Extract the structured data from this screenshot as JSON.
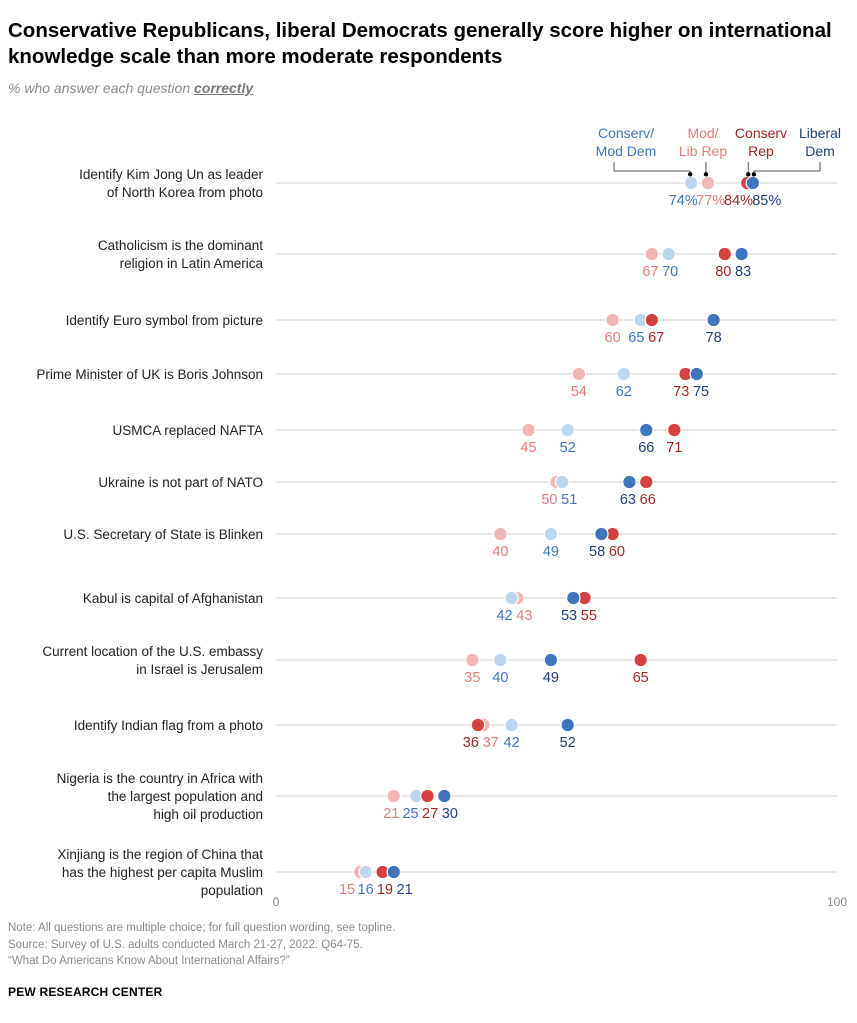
{
  "header": {
    "title": "Conservative Republicans, liberal Democrats generally score higher on international knowledge scale than more moderate respondents",
    "subtitle_prefix": "% who answer each question",
    "subtitle_emphasis": "correctly"
  },
  "colors": {
    "mod_lib_rep": "#f2b6b6",
    "conserv_rep": "#d83f3f",
    "conserv_mod_dem": "#bcd6f0",
    "liberal_dem": "#3f74c0",
    "mod_lib_rep_text": "#e77a7a",
    "conserv_rep_text": "#a32424",
    "conserv_mod_dem_text": "#3f74c0",
    "liberal_dem_text": "#1f3f78",
    "gridline": "#cfcfcf"
  },
  "chart_data": {
    "type": "dot",
    "title": "Conservative Republicans, liberal Democrats generally score higher on international knowledge scale than more moderate respondents",
    "ylabel": "% who answer each question correctly",
    "xlim": [
      0,
      100
    ],
    "axis_ticks": [
      "0",
      "100"
    ],
    "legend": [
      {
        "key": "conserv_mod_dem",
        "label_line1": "Conserv/",
        "label_line2": "Mod Dem"
      },
      {
        "key": "mod_lib_rep",
        "label_line1": "Mod/",
        "label_line2": "Lib Rep"
      },
      {
        "key": "conserv_rep",
        "label_line1": "Conserv",
        "label_line2": "Rep"
      },
      {
        "key": "liberal_dem",
        "label_line1": "Liberal",
        "label_line2": "Dem"
      }
    ],
    "categories": [
      "Identify Kim Jong Un as leader of North Korea from photo",
      "Catholicism is the dominant religion in Latin America",
      "Identify Euro symbol from picture",
      "Prime Minister of UK is Boris Johnson",
      "USMCA replaced NAFTA",
      "Ukraine is not part of NATO",
      "U.S. Secretary of State is Blinken",
      "Kabul is capital of Afghanistan",
      "Current location of the U.S. embassy in Israel is Jerusalem",
      "Identify Indian flag from a photo",
      "Nigeria is the country in Africa with the largest population and high oil production",
      "Xinjiang is the region of China that has the highest per capita Muslim population"
    ],
    "series": [
      {
        "key": "mod_lib_rep",
        "name": "Mod/Lib Rep",
        "values": [
          77,
          67,
          60,
          54,
          45,
          50,
          40,
          43,
          35,
          37,
          21,
          15
        ]
      },
      {
        "key": "conserv_mod_dem",
        "name": "Conserv/Mod Dem",
        "values": [
          74,
          70,
          65,
          62,
          52,
          51,
          49,
          42,
          40,
          42,
          25,
          16
        ]
      },
      {
        "key": "conserv_rep",
        "name": "Conserv Rep",
        "values": [
          84,
          80,
          67,
          73,
          71,
          66,
          60,
          55,
          65,
          36,
          27,
          19
        ]
      },
      {
        "key": "liberal_dem",
        "name": "Liberal Dem",
        "values": [
          85,
          83,
          78,
          75,
          66,
          63,
          58,
          53,
          49,
          52,
          30,
          21
        ]
      }
    ],
    "rows": [
      {
        "label_lines": [
          "Identify Kim Jong Un as leader",
          "of North Korea from photo"
        ],
        "data_labels": [
          {
            "key": "conserv_mod_dem",
            "text": "74%"
          },
          {
            "key": "mod_lib_rep",
            "text": "77%"
          },
          {
            "key": "conserv_rep",
            "text": "84%"
          },
          {
            "key": "liberal_dem",
            "text": "85%"
          }
        ]
      },
      {
        "label_lines": [
          "Catholicism is the dominant",
          "religion in Latin America"
        ],
        "data_labels": [
          {
            "key": "mod_lib_rep",
            "text": "67"
          },
          {
            "key": "conserv_mod_dem",
            "text": "70"
          },
          {
            "key": "conserv_rep",
            "text": "80"
          },
          {
            "key": "liberal_dem",
            "text": "83"
          }
        ]
      },
      {
        "label_lines": [
          "Identify Euro symbol from picture"
        ],
        "data_labels": [
          {
            "key": "mod_lib_rep",
            "text": "60"
          },
          {
            "key": "conserv_mod_dem",
            "text": "65"
          },
          {
            "key": "conserv_rep",
            "text": "67"
          },
          {
            "key": "liberal_dem",
            "text": "78"
          }
        ]
      },
      {
        "label_lines": [
          "Prime Minister of UK is Boris Johnson"
        ],
        "data_labels": [
          {
            "key": "mod_lib_rep",
            "text": "54"
          },
          {
            "key": "conserv_mod_dem",
            "text": "62"
          },
          {
            "key": "conserv_rep",
            "text": "73"
          },
          {
            "key": "liberal_dem",
            "text": "75"
          }
        ]
      },
      {
        "label_lines": [
          "USMCA replaced NAFTA"
        ],
        "data_labels": [
          {
            "key": "mod_lib_rep",
            "text": "45"
          },
          {
            "key": "conserv_mod_dem",
            "text": "52"
          },
          {
            "key": "liberal_dem",
            "text": "66"
          },
          {
            "key": "conserv_rep",
            "text": "71"
          }
        ]
      },
      {
        "label_lines": [
          "Ukraine is not part of NATO"
        ],
        "data_labels": [
          {
            "key": "mod_lib_rep",
            "text": "50"
          },
          {
            "key": "conserv_mod_dem",
            "text": "51"
          },
          {
            "key": "liberal_dem",
            "text": "63"
          },
          {
            "key": "conserv_rep",
            "text": "66"
          }
        ]
      },
      {
        "label_lines": [
          "U.S. Secretary of State is Blinken"
        ],
        "data_labels": [
          {
            "key": "mod_lib_rep",
            "text": "40"
          },
          {
            "key": "conserv_mod_dem",
            "text": "49"
          },
          {
            "key": "liberal_dem",
            "text": "58"
          },
          {
            "key": "conserv_rep",
            "text": "60"
          }
        ]
      },
      {
        "label_lines": [
          "Kabul is capital of Afghanistan"
        ],
        "data_labels": [
          {
            "key": "conserv_mod_dem",
            "text": "42"
          },
          {
            "key": "mod_lib_rep",
            "text": "43"
          },
          {
            "key": "liberal_dem",
            "text": "53"
          },
          {
            "key": "conserv_rep",
            "text": "55"
          }
        ]
      },
      {
        "label_lines": [
          "Current location of the U.S. embassy",
          "in Israel is Jerusalem"
        ],
        "data_labels": [
          {
            "key": "mod_lib_rep",
            "text": "35"
          },
          {
            "key": "conserv_mod_dem",
            "text": "40"
          },
          {
            "key": "liberal_dem",
            "text": "49"
          },
          {
            "key": "conserv_rep",
            "text": "65"
          }
        ]
      },
      {
        "label_lines": [
          "Identify Indian flag from a photo"
        ],
        "data_labels": [
          {
            "key": "conserv_rep",
            "text": "36"
          },
          {
            "key": "mod_lib_rep",
            "text": "37"
          },
          {
            "key": "conserv_mod_dem",
            "text": "42"
          },
          {
            "key": "liberal_dem",
            "text": "52"
          }
        ]
      },
      {
        "label_lines": [
          "Nigeria is the country in Africa with",
          "the largest population and",
          "high oil production"
        ],
        "data_labels": [
          {
            "key": "mod_lib_rep",
            "text": "21"
          },
          {
            "key": "conserv_mod_dem",
            "text": "25"
          },
          {
            "key": "conserv_rep",
            "text": "27"
          },
          {
            "key": "liberal_dem",
            "text": "30"
          }
        ]
      },
      {
        "label_lines": [
          "Xinjiang is the region of China that",
          "has the highest per capita Muslim",
          "population"
        ],
        "data_labels": [
          {
            "key": "mod_lib_rep",
            "text": "15"
          },
          {
            "key": "conserv_mod_dem",
            "text": "16"
          },
          {
            "key": "conserv_rep",
            "text": "19"
          },
          {
            "key": "liberal_dem",
            "text": "21"
          }
        ]
      }
    ]
  },
  "notes": {
    "note": "Note: All questions are multiple choice; for full question wording, see topline.",
    "source": "Source: Survey of U.S. adults conducted March 21-27, 2022. Q64-75.",
    "report": "“What Do Americans Know About International Affairs?”"
  },
  "footer": {
    "brand": "PEW RESEARCH CENTER"
  }
}
